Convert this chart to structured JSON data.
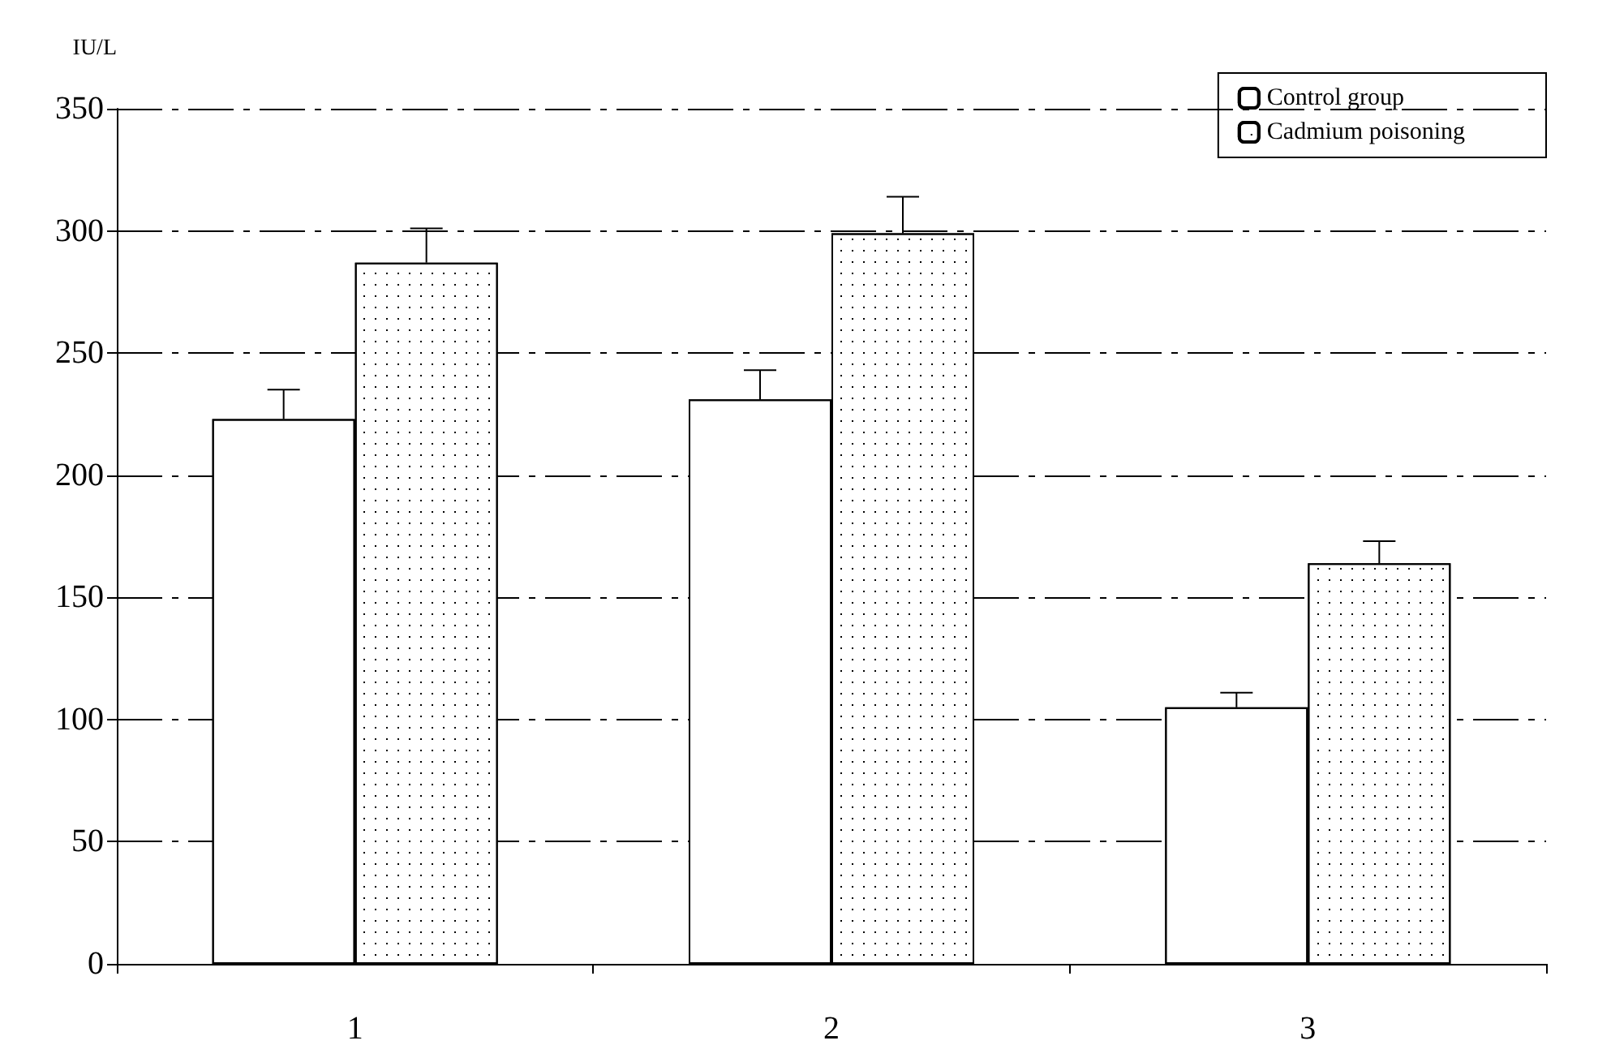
{
  "chart_data": {
    "type": "bar",
    "ylabel": "IU/L",
    "categories": [
      "1",
      "2",
      "3"
    ],
    "series": [
      {
        "name": "Control group",
        "color": "#ffffff",
        "values": [
          223,
          231,
          105
        ],
        "errors": [
          [
            223,
            235
          ],
          [
            231,
            243
          ],
          [
            105,
            111
          ]
        ]
      },
      {
        "name": "Cadmium poisoning",
        "color": "#ffffff",
        "values": [
          287,
          299,
          164
        ],
        "errors": [
          [
            287,
            301
          ],
          [
            299,
            314
          ],
          [
            164,
            173
          ]
        ]
      }
    ],
    "ylim": [
      0,
      350
    ],
    "yticks": [
      0,
      50,
      100,
      150,
      200,
      250,
      300,
      350
    ],
    "grid": "y",
    "legend": "top right"
  }
}
